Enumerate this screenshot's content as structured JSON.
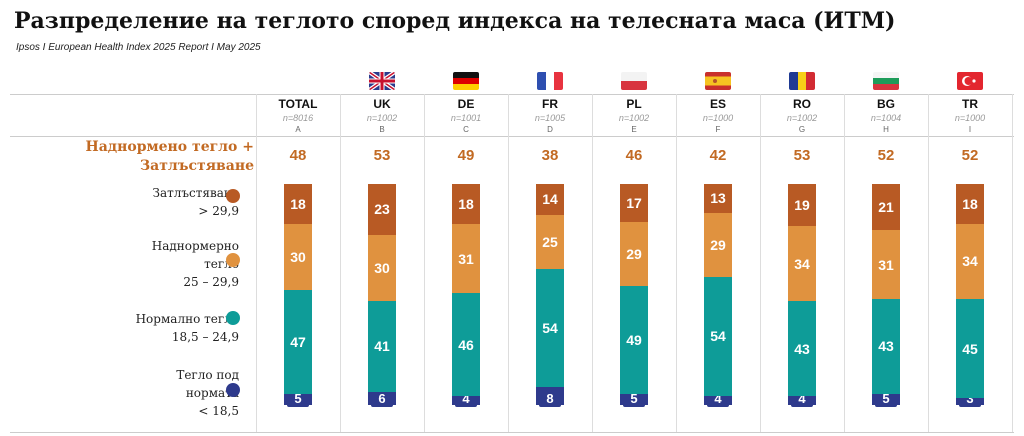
{
  "title": "Разпределение на теглото според индекса на телесната маса (ИТМ)",
  "subtitle": "Ipsos I European Health Index 2025 Report I May 2025",
  "colors": {
    "obese": "#b85a24",
    "overweight": "#e0923f",
    "normal": "#0e9c98",
    "under": "#2e3a8c",
    "accent": "#c26a23"
  },
  "chart_data": {
    "type": "bar",
    "stacked": true,
    "title": "Разпределение на теглото според индекса на телесната маса (ИТМ)",
    "summary_label_line1": "Наднормено тегло +",
    "summary_label_line2": "Затлъстяване",
    "categories": [
      "TOTAL",
      "UK",
      "DE",
      "FR",
      "PL",
      "ES",
      "RO",
      "BG",
      "TR"
    ],
    "sample_sizes": [
      "n=8016",
      "n=1002",
      "n=1001",
      "n=1005",
      "n=1002",
      "n=1000",
      "n=1002",
      "n=1004",
      "n=1000"
    ],
    "letters": [
      "A",
      "B",
      "C",
      "D",
      "E",
      "F",
      "G",
      "H",
      "I"
    ],
    "flags": [
      "",
      "uk-flag",
      "de-flag",
      "fr-flag",
      "pl-flag",
      "es-flag",
      "ro-flag",
      "bg-flag",
      "tr-flag"
    ],
    "summary": [
      48,
      53,
      49,
      38,
      46,
      42,
      53,
      52,
      52
    ],
    "series": [
      {
        "key": "obese",
        "name": "Затлъстяване",
        "range": "> 29,9",
        "values": [
          18,
          23,
          18,
          14,
          17,
          13,
          19,
          21,
          18
        ]
      },
      {
        "key": "overweight",
        "name": "Наднормерно тегло",
        "range": "25 – 29,9",
        "values": [
          30,
          30,
          31,
          25,
          29,
          29,
          34,
          31,
          34
        ]
      },
      {
        "key": "normal",
        "name": "Нормално тегло",
        "range": "18,5 – 24,9",
        "values": [
          47,
          41,
          46,
          54,
          49,
          54,
          43,
          43,
          45
        ]
      },
      {
        "key": "under",
        "name": "Тегло под нормата",
        "range": "< 18,5",
        "values": [
          5,
          6,
          4,
          8,
          5,
          4,
          4,
          5,
          3
        ]
      }
    ]
  }
}
